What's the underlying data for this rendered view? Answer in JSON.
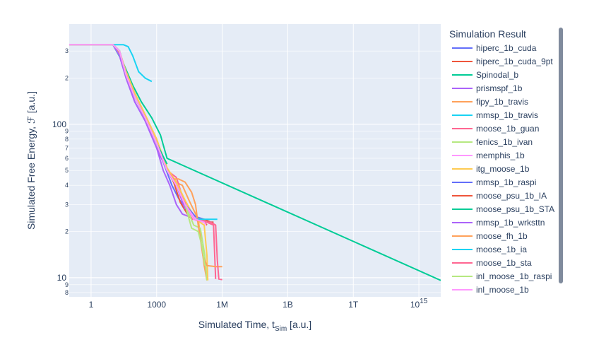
{
  "chart_data": {
    "type": "line",
    "xlabel": "Simulated Time, t",
    "xlabel_sub": "Sim",
    "xlabel_unit": " [a.u.]",
    "ylabel": "Simulated Free Energy, ℱ [a.u.]",
    "x_scale": "log",
    "y_scale": "log",
    "xlim": [
      0.1,
      1e+16
    ],
    "ylim": [
      7.5,
      450
    ],
    "grid": true,
    "legend_position": "right",
    "legend_title": "Simulation Result",
    "x_ticks": [
      {
        "value": 1,
        "label": "1"
      },
      {
        "value": 1000,
        "label": "1000"
      },
      {
        "value": 1000000,
        "label": "1M"
      },
      {
        "value": 1000000000,
        "label": "1B"
      },
      {
        "value": 1000000000000,
        "label": "1T"
      },
      {
        "value": 1000000000000000.0,
        "label": "10",
        "sup": "15"
      }
    ],
    "y_major_ticks": [
      {
        "value": 10,
        "label": "10"
      },
      {
        "value": 100,
        "label": "100"
      }
    ],
    "y_minor_ticks": [
      {
        "value": 8,
        "label": "8"
      },
      {
        "value": 9,
        "label": "9"
      },
      {
        "value": 2,
        "label": "2",
        "scale": 10
      },
      {
        "value": 3,
        "label": "3",
        "scale": 10
      },
      {
        "value": 4,
        "label": "4",
        "scale": 10
      },
      {
        "value": 5,
        "label": "5",
        "scale": 10
      },
      {
        "value": 6,
        "label": "6",
        "scale": 10
      },
      {
        "value": 7,
        "label": "7",
        "scale": 10
      },
      {
        "value": 8,
        "label": "8",
        "scale": 10
      },
      {
        "value": 9,
        "label": "9",
        "scale": 10
      },
      {
        "value": 2,
        "label": "2",
        "scale": 100
      },
      {
        "value": 3,
        "label": "3",
        "scale": 100
      }
    ],
    "series": [
      {
        "name": "hiperc_1b_cuda",
        "color": "#636efa",
        "x": [
          0.1,
          1,
          10,
          20,
          40,
          100,
          300,
          1000,
          2500,
          5000,
          10000,
          30000,
          60000,
          150000,
          300000,
          400000
        ],
        "y": [
          330,
          330,
          330,
          300,
          210,
          150,
          110,
          75,
          52,
          40,
          33,
          26,
          25,
          24,
          23,
          23
        ]
      },
      {
        "name": "hiperc_1b_cuda_9pt",
        "color": "#ef553b",
        "x": [
          0.1,
          1,
          10,
          20,
          40,
          100,
          300,
          1000,
          2500,
          6000,
          12000,
          30000,
          60000,
          150000,
          300000,
          400000
        ],
        "y": [
          330,
          330,
          330,
          300,
          210,
          150,
          110,
          75,
          53,
          42,
          31,
          25,
          24,
          24,
          23,
          23
        ]
      },
      {
        "name": "Spinodal_b",
        "color": "#00cc96",
        "x": [
          0.1,
          1,
          10,
          30,
          80,
          200,
          600,
          1500,
          3000,
          1e+16
        ],
        "y": [
          330,
          330,
          330,
          250,
          180,
          140,
          110,
          85,
          60,
          9.6
        ]
      },
      {
        "name": "prismspf_1b",
        "color": "#ab63fa",
        "x": [
          0.1,
          1,
          10,
          20,
          40,
          100,
          300,
          1000,
          2000,
          4000,
          8000,
          15000,
          30000
        ],
        "y": [
          330,
          330,
          330,
          280,
          200,
          140,
          105,
          70,
          50,
          40,
          30,
          26,
          25
        ]
      },
      {
        "name": "fipy_1b_travis",
        "color": "#ffa15a",
        "x": [
          0.1,
          1,
          10,
          20,
          40,
          100,
          300,
          1000,
          3000,
          7000,
          15000,
          30000,
          80000,
          150000,
          200000
        ],
        "y": [
          330,
          330,
          330,
          290,
          220,
          160,
          115,
          80,
          50,
          42,
          40,
          32,
          24,
          12,
          9.6
        ]
      },
      {
        "name": "mmsp_1b_travis",
        "color": "#19d3f3",
        "x": [
          0.1,
          1,
          10,
          30,
          50,
          80,
          150,
          300,
          600
        ],
        "y": [
          330,
          330,
          330,
          330,
          320,
          280,
          220,
          200,
          190
        ]
      },
      {
        "name": "moose_1b_guan",
        "color": "#ff6692",
        "x": [
          0.1,
          1,
          10,
          20,
          40,
          100,
          300,
          1000,
          3000,
          8000,
          15000,
          40000,
          100000,
          200000,
          400000,
          500000
        ],
        "y": [
          330,
          330,
          330,
          300,
          210,
          150,
          110,
          75,
          50,
          45,
          34,
          24,
          24,
          23,
          22,
          9.8
        ]
      },
      {
        "name": "fenics_1b_ivan",
        "color": "#b6e880",
        "x": [
          0.1,
          1,
          10,
          20,
          40,
          100,
          300,
          1000,
          3000,
          8000,
          20000,
          50000,
          100000,
          160000,
          200000
        ],
        "y": [
          330,
          330,
          330,
          300,
          210,
          150,
          110,
          75,
          50,
          40,
          30,
          22,
          21,
          14,
          9.6
        ]
      },
      {
        "name": "memphis_1b",
        "color": "#ff97ff",
        "x": [
          0.1,
          1,
          10,
          20,
          40,
          100,
          300,
          1000,
          3000,
          8000,
          20000,
          50000,
          100000
        ],
        "y": [
          330,
          330,
          330,
          300,
          210,
          150,
          110,
          75,
          50,
          40,
          30,
          24,
          23
        ]
      },
      {
        "name": "itg_moose_1b",
        "color": "#fecb52",
        "x": [
          0.1,
          1,
          10,
          20,
          40,
          100,
          300,
          1000,
          3000,
          8000,
          20000,
          60000,
          150000,
          200000,
          220000
        ],
        "y": [
          330,
          330,
          330,
          300,
          220,
          160,
          115,
          80,
          52,
          42,
          32,
          24,
          22,
          14,
          9.6
        ]
      },
      {
        "name": "mmsp_1b_raspi",
        "color": "#636efa",
        "x": [
          0.1,
          1,
          10,
          20,
          40,
          100,
          300,
          1000,
          3000,
          8000,
          20000,
          60000
        ],
        "y": [
          330,
          330,
          330,
          300,
          210,
          150,
          110,
          75,
          50,
          40,
          30,
          25
        ]
      },
      {
        "name": "moose_psu_1b_IA",
        "color": "#ef553b",
        "x": [
          0.1,
          1,
          10,
          20,
          40,
          100,
          300,
          1000,
          3000,
          8000,
          20000,
          60000,
          150000,
          200000
        ],
        "y": [
          330,
          330,
          330,
          300,
          210,
          150,
          110,
          75,
          50,
          40,
          30,
          24,
          23,
          22
        ]
      },
      {
        "name": "moose_psu_1b_STA",
        "color": "#00cc96",
        "x": [
          0.1,
          1,
          10,
          20,
          40,
          100,
          300,
          1000,
          3000
        ],
        "y": [
          330,
          330,
          330,
          300,
          210,
          150,
          110,
          75,
          55
        ]
      },
      {
        "name": "mmsp_1b_wrksttn",
        "color": "#ab63fa",
        "x": [
          0.1,
          1,
          10,
          20,
          40,
          100,
          300,
          1000,
          3000,
          8000,
          20000
        ],
        "y": [
          330,
          330,
          330,
          280,
          200,
          140,
          105,
          70,
          50,
          40,
          28
        ]
      },
      {
        "name": "moose_fh_1b",
        "color": "#ffa15a",
        "x": [
          0.1,
          1,
          10,
          20,
          40,
          100,
          300,
          1000,
          3000,
          6000,
          10000,
          20000,
          40000,
          60000,
          80000,
          100000,
          130000,
          200000,
          500000,
          1000000
        ],
        "y": [
          330,
          330,
          330,
          300,
          210,
          150,
          110,
          75,
          50,
          44,
          44,
          42,
          36,
          30,
          22,
          18,
          14,
          12,
          11.8,
          11.8
        ]
      },
      {
        "name": "moose_1b_ia",
        "color": "#19d3f3",
        "x": [
          0.1,
          1,
          10,
          20,
          40,
          100,
          300,
          1000,
          3000,
          8000,
          20000,
          60000,
          150000,
          300000,
          600000
        ],
        "y": [
          330,
          330,
          330,
          300,
          210,
          150,
          110,
          75,
          50,
          40,
          30,
          24,
          24,
          24,
          24
        ]
      },
      {
        "name": "moose_1b_sta",
        "color": "#ff6692",
        "x": [
          0.1,
          1,
          10,
          20,
          40,
          100,
          300,
          1000,
          3000,
          8000,
          20000,
          60000,
          150000,
          300000,
          500000,
          600000,
          700000,
          1000000
        ],
        "y": [
          330,
          330,
          330,
          300,
          210,
          150,
          110,
          75,
          50,
          40,
          30,
          24,
          23,
          23,
          22,
          13,
          9.8,
          9.7
        ]
      },
      {
        "name": "inl_moose_1b_raspi",
        "color": "#b6e880",
        "x": [
          0.1,
          1,
          10,
          20,
          40,
          100,
          300,
          1000,
          3000,
          8000,
          20000,
          40000,
          80000,
          120000,
          160000
        ],
        "y": [
          330,
          330,
          330,
          300,
          210,
          150,
          110,
          75,
          50,
          40,
          30,
          21,
          20,
          16,
          12
        ]
      },
      {
        "name": "inl_moose_1b",
        "color": "#ff97ff",
        "x": [
          0.1,
          1,
          10,
          20,
          40,
          100,
          300,
          1000,
          3000,
          8000,
          20000,
          60000,
          150000,
          180000
        ],
        "y": [
          330,
          330,
          330,
          300,
          210,
          150,
          110,
          75,
          50,
          40,
          30,
          24,
          23,
          22
        ]
      }
    ]
  }
}
